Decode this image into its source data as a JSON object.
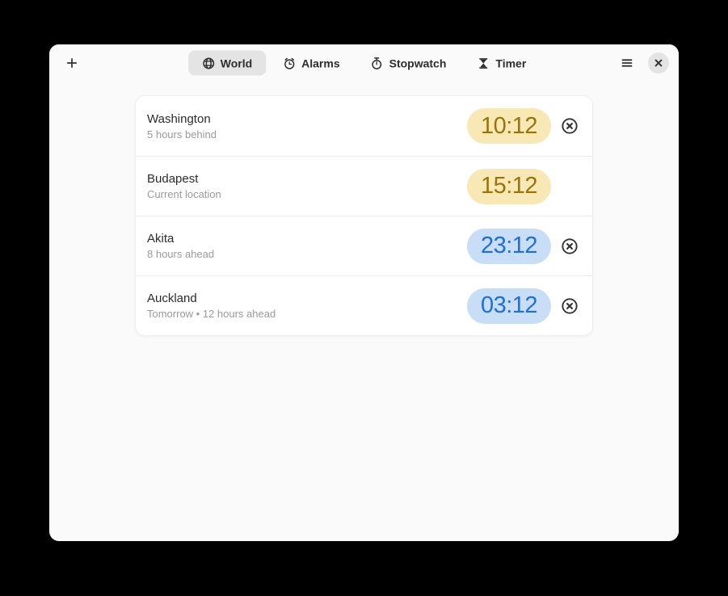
{
  "header": {
    "add_tooltip": "Add clock",
    "tabs": [
      {
        "label": "World",
        "icon": "globe-icon",
        "selected": true
      },
      {
        "label": "Alarms",
        "icon": "alarm-icon",
        "selected": false
      },
      {
        "label": "Stopwatch",
        "icon": "stopwatch-icon",
        "selected": false
      },
      {
        "label": "Timer",
        "icon": "hourglass-icon",
        "selected": false
      }
    ]
  },
  "world_clocks": [
    {
      "city": "Washington",
      "detail": "5 hours behind",
      "time": "10:12",
      "tone": "daylight",
      "removable": true
    },
    {
      "city": "Budapest",
      "detail": "Current location",
      "time": "15:12",
      "tone": "daylight",
      "removable": false
    },
    {
      "city": "Akita",
      "detail": "8 hours ahead",
      "time": "23:12",
      "tone": "night",
      "removable": true
    },
    {
      "city": "Auckland",
      "detail": "Tomorrow • 12 hours ahead",
      "time": "03:12",
      "tone": "night",
      "removable": true
    }
  ],
  "colors": {
    "daylight": {
      "bg": "#f8e8b5",
      "fg": "#9b7407"
    },
    "night": {
      "bg": "#c8ddf6",
      "fg": "#1c6fdd"
    },
    "window_bg": "#fafafa",
    "card_bg": "#ffffff",
    "selected_tab_bg": "#e4e4e4"
  }
}
